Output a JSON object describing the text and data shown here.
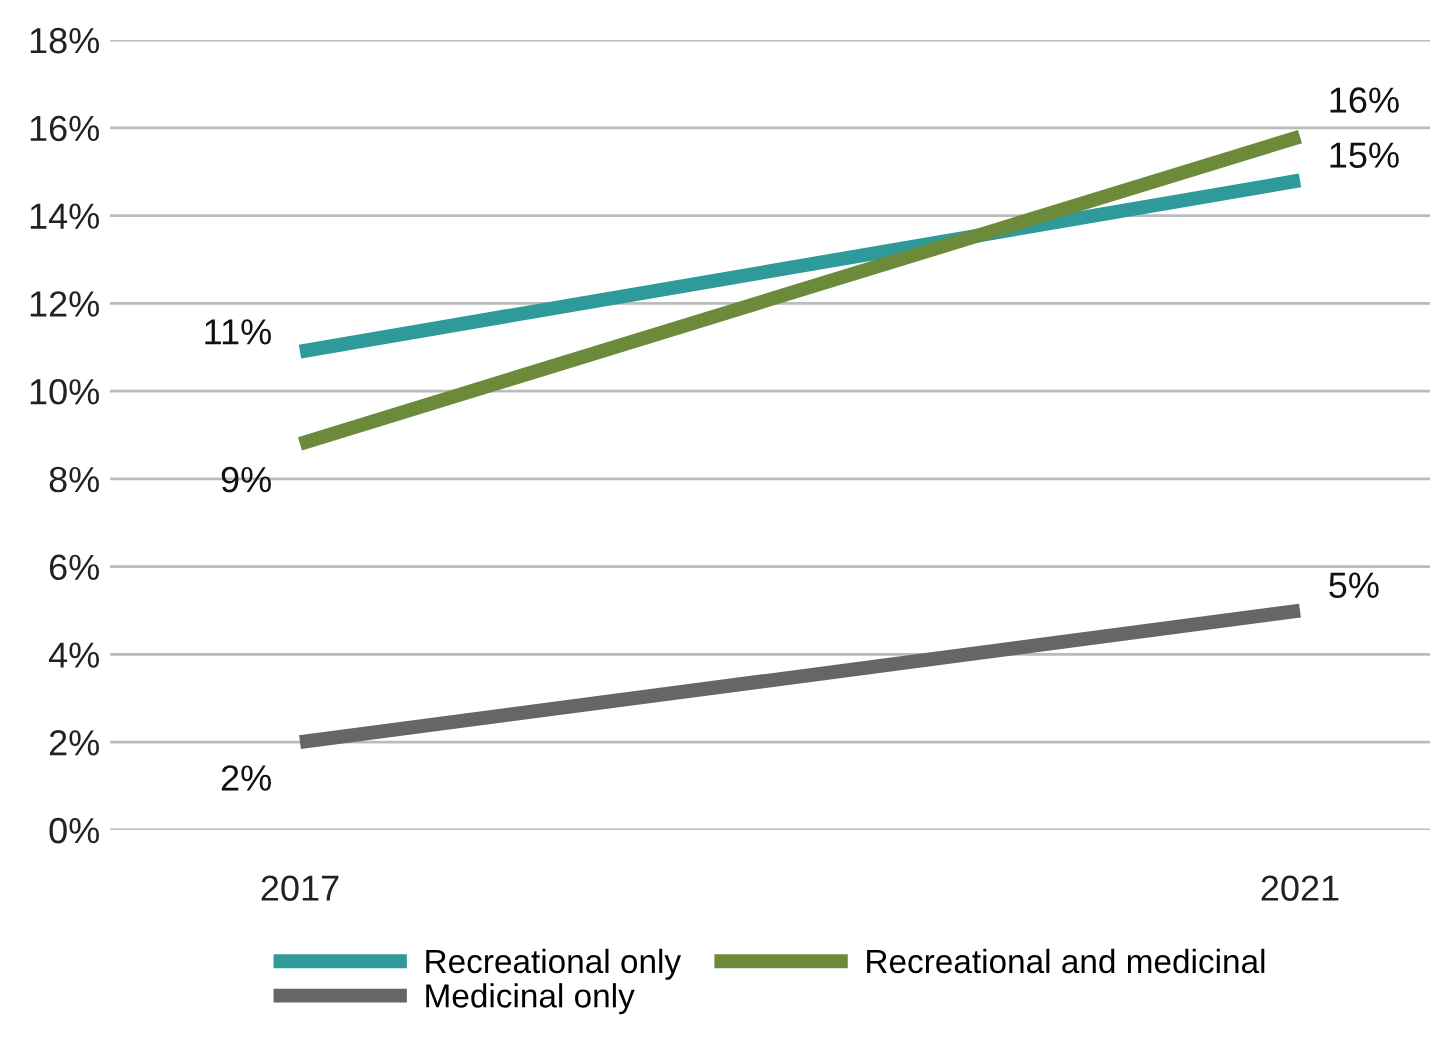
{
  "chart_data": {
    "type": "line",
    "categories": [
      "2017",
      "2021"
    ],
    "series": [
      {
        "name": "Recreational only",
        "color": "#2e9a9a",
        "values": [
          10.9,
          14.8
        ],
        "value_labels": [
          "11%",
          "15%"
        ]
      },
      {
        "name": "Medicinal only",
        "color": "#666666",
        "values": [
          2.0,
          5.0
        ],
        "value_labels": [
          "2%",
          "5%"
        ]
      },
      {
        "name": "Recreational and medicinal",
        "color": "#6b8a3a",
        "values": [
          8.8,
          15.8
        ],
        "value_labels": [
          "9%",
          "16%"
        ]
      }
    ],
    "ylim": [
      0,
      18
    ],
    "yticks": [
      {
        "value": 0,
        "label": "0%"
      },
      {
        "value": 2,
        "label": "2%"
      },
      {
        "value": 4,
        "label": "4%"
      },
      {
        "value": 6,
        "label": "6%"
      },
      {
        "value": 8,
        "label": "8%"
      },
      {
        "value": 10,
        "label": "10%"
      },
      {
        "value": 12,
        "label": "12%"
      },
      {
        "value": 14,
        "label": "14%"
      },
      {
        "value": 16,
        "label": "16%"
      },
      {
        "value": 18,
        "label": "18%"
      }
    ],
    "grid": "y",
    "legend": "bottom",
    "marker": "none",
    "line_style": "solid"
  }
}
